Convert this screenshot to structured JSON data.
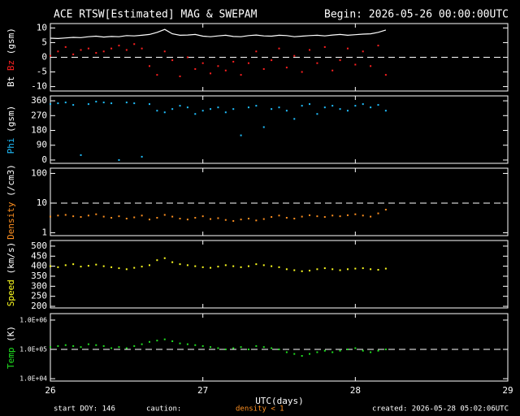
{
  "title": "ACE RTSW[Estimated] MAG & SWEPAM",
  "begin": "Begin: 2026-05-26 00:00:00UTC",
  "xlim": [
    26,
    29
  ],
  "xticks": [
    26,
    27,
    28,
    29
  ],
  "xlabel": "UTC(days)",
  "footer": {
    "start": "start DOY: 146",
    "caution": "caution:",
    "caution_note": "density < 1",
    "created": "created: 2026-05-28 05:02:06UTC"
  },
  "chart_data": [
    {
      "type": "scatter",
      "ylabel_unit": "(gsm)",
      "ylim": [
        -11.5,
        11.5
      ],
      "yticks": [
        -10,
        -5,
        0,
        5,
        10
      ],
      "hlines": [
        0
      ],
      "x": [
        26.0,
        26.05,
        26.1,
        26.15,
        26.2,
        26.25,
        26.3,
        26.35,
        26.4,
        26.45,
        26.5,
        26.55,
        26.6,
        26.65,
        26.7,
        26.75,
        26.8,
        26.85,
        26.9,
        26.95,
        27.0,
        27.05,
        27.1,
        27.15,
        27.2,
        27.25,
        27.3,
        27.35,
        27.4,
        27.45,
        27.5,
        27.55,
        27.6,
        27.65,
        27.7,
        27.75,
        27.8,
        27.85,
        27.9,
        27.95,
        28.0,
        28.05,
        28.1,
        28.15,
        28.2
      ],
      "series": [
        {
          "name": "Bt",
          "color": "#ffffff",
          "style": "line",
          "values": [
            6.5,
            6.4,
            6.6,
            6.8,
            6.7,
            7.0,
            7.2,
            6.9,
            7.1,
            7.0,
            7.4,
            7.3,
            7.5,
            7.8,
            8.5,
            9.5,
            8.0,
            7.5,
            7.6,
            7.8,
            7.2,
            7.0,
            7.3,
            7.5,
            7.1,
            7.0,
            7.4,
            7.6,
            7.3,
            7.2,
            7.5,
            7.4,
            7.0,
            7.2,
            7.4,
            7.5,
            7.3,
            7.6,
            7.8,
            7.5,
            7.7,
            7.9,
            8.0,
            8.5,
            9.3
          ]
        },
        {
          "name": "Bz",
          "color": "#ff2020",
          "style": "points",
          "values": [
            0.5,
            2.0,
            3.5,
            1.0,
            2.5,
            3.0,
            1.5,
            2.0,
            3.0,
            4.0,
            2.5,
            4.5,
            3.0,
            -3.0,
            -6.0,
            2.0,
            -1.0,
            -6.5,
            0.0,
            -4.0,
            -2.0,
            -5.5,
            -3.0,
            -4.5,
            -1.5,
            -6.0,
            -2.0,
            2.0,
            -4.0,
            -1.0,
            3.0,
            -3.5,
            0.5,
            -5.0,
            2.5,
            -2.0,
            3.5,
            -4.5,
            -1.0,
            3.0,
            -2.5,
            2.0,
            -3.0,
            4.0,
            -6.0
          ]
        }
      ]
    },
    {
      "type": "scatter",
      "ylabel_unit": "(gsm)",
      "ylim": [
        -20,
        390
      ],
      "yticks": [
        0,
        90,
        180,
        270,
        360
      ],
      "hlines": [],
      "x": [
        26.0,
        26.05,
        26.1,
        26.15,
        26.2,
        26.25,
        26.3,
        26.35,
        26.4,
        26.45,
        26.5,
        26.55,
        26.6,
        26.65,
        26.7,
        26.75,
        26.8,
        26.85,
        26.9,
        26.95,
        27.0,
        27.05,
        27.1,
        27.15,
        27.2,
        27.25,
        27.3,
        27.35,
        27.4,
        27.45,
        27.5,
        27.55,
        27.6,
        27.65,
        27.7,
        27.75,
        27.8,
        27.85,
        27.9,
        27.95,
        28.0,
        28.05,
        28.1,
        28.15,
        28.2
      ],
      "series": [
        {
          "name": "Phi",
          "color": "#20c0ff",
          "style": "points",
          "values": [
            340,
            345,
            350,
            335,
            30,
            340,
            355,
            350,
            345,
            0,
            350,
            345,
            20,
            340,
            300,
            290,
            310,
            330,
            320,
            280,
            300,
            310,
            320,
            290,
            310,
            150,
            320,
            330,
            200,
            310,
            320,
            300,
            250,
            330,
            340,
            280,
            320,
            330,
            310,
            300,
            330,
            340,
            320,
            335,
            300
          ]
        }
      ]
    },
    {
      "type": "scatter",
      "log": true,
      "ylabel_unit": "(/cm3)",
      "ylim": [
        0.8,
        150
      ],
      "yticks": [
        1,
        10,
        100
      ],
      "hlines": [
        10
      ],
      "x": [
        26.0,
        26.05,
        26.1,
        26.15,
        26.2,
        26.25,
        26.3,
        26.35,
        26.4,
        26.45,
        26.5,
        26.55,
        26.6,
        26.65,
        26.7,
        26.75,
        26.8,
        26.85,
        26.9,
        26.95,
        27.0,
        27.05,
        27.1,
        27.15,
        27.2,
        27.25,
        27.3,
        27.35,
        27.4,
        27.45,
        27.5,
        27.55,
        27.6,
        27.65,
        27.7,
        27.75,
        27.8,
        27.85,
        27.9,
        27.95,
        28.0,
        28.05,
        28.1,
        28.15,
        28.2
      ],
      "series": [
        {
          "name": "Density",
          "color": "#ff9020",
          "style": "points",
          "values": [
            3.5,
            3.8,
            4.0,
            3.6,
            3.4,
            3.8,
            4.2,
            3.5,
            3.2,
            3.6,
            3.0,
            3.3,
            3.8,
            2.8,
            3.2,
            4.0,
            3.5,
            3.0,
            2.8,
            3.2,
            3.6,
            2.9,
            3.1,
            2.7,
            2.5,
            2.8,
            3.0,
            2.6,
            2.9,
            3.4,
            3.8,
            3.2,
            3.0,
            3.5,
            3.9,
            3.6,
            3.4,
            3.8,
            3.6,
            3.9,
            4.2,
            3.8,
            3.5,
            4.5,
            6.0
          ]
        }
      ]
    },
    {
      "type": "scatter",
      "ylabel_unit": "(km/s)",
      "ylim": [
        192,
        528
      ],
      "yticks": [
        200,
        250,
        300,
        350,
        400,
        450,
        500
      ],
      "hlines": [],
      "x": [
        26.0,
        26.05,
        26.1,
        26.15,
        26.2,
        26.25,
        26.3,
        26.35,
        26.4,
        26.45,
        26.5,
        26.55,
        26.6,
        26.65,
        26.7,
        26.75,
        26.8,
        26.85,
        26.9,
        26.95,
        27.0,
        27.05,
        27.1,
        27.15,
        27.2,
        27.25,
        27.3,
        27.35,
        27.4,
        27.45,
        27.5,
        27.55,
        27.6,
        27.65,
        27.7,
        27.75,
        27.8,
        27.85,
        27.9,
        27.95,
        28.0,
        28.05,
        28.1,
        28.15,
        28.2
      ],
      "series": [
        {
          "name": "Speed",
          "color": "#ffff20",
          "style": "points",
          "values": [
            400,
            395,
            405,
            410,
            398,
            402,
            408,
            400,
            395,
            390,
            385,
            392,
            398,
            405,
            430,
            440,
            420,
            410,
            405,
            400,
            395,
            392,
            398,
            405,
            400,
            395,
            400,
            410,
            405,
            400,
            395,
            385,
            380,
            375,
            378,
            385,
            390,
            385,
            380,
            385,
            388,
            390,
            385,
            382,
            388
          ]
        }
      ]
    },
    {
      "type": "scatter",
      "log": true,
      "ylabel_unit": "(K)",
      "ylim": [
        8300,
        1660000
      ],
      "yticks": [
        {
          "value": 10000,
          "label": "1.0E+04"
        },
        {
          "value": 100000,
          "label": "1.0E+05"
        },
        {
          "value": 1000000,
          "label": "1.0E+06"
        }
      ],
      "hlines": [
        100000
      ],
      "x": [
        26.0,
        26.05,
        26.1,
        26.15,
        26.2,
        26.25,
        26.3,
        26.35,
        26.4,
        26.45,
        26.5,
        26.55,
        26.6,
        26.65,
        26.7,
        26.75,
        26.8,
        26.85,
        26.9,
        26.95,
        27.0,
        27.05,
        27.1,
        27.15,
        27.2,
        27.25,
        27.3,
        27.35,
        27.4,
        27.45,
        27.5,
        27.55,
        27.6,
        27.65,
        27.7,
        27.75,
        27.8,
        27.85,
        27.9,
        27.95,
        28.0,
        28.05,
        28.1,
        28.15,
        28.2
      ],
      "series": [
        {
          "name": "Temp",
          "color": "#20e020",
          "style": "points",
          "values": [
            120000,
            130000,
            140000,
            130000,
            120000,
            150000,
            140000,
            130000,
            110000,
            120000,
            110000,
            130000,
            150000,
            180000,
            200000,
            220000,
            190000,
            160000,
            150000,
            140000,
            130000,
            120000,
            110000,
            100000,
            110000,
            120000,
            100000,
            130000,
            120000,
            110000,
            100000,
            80000,
            70000,
            60000,
            70000,
            80000,
            90000,
            80000,
            90000,
            100000,
            110000,
            90000,
            80000,
            90000,
            100000
          ]
        }
      ]
    }
  ]
}
